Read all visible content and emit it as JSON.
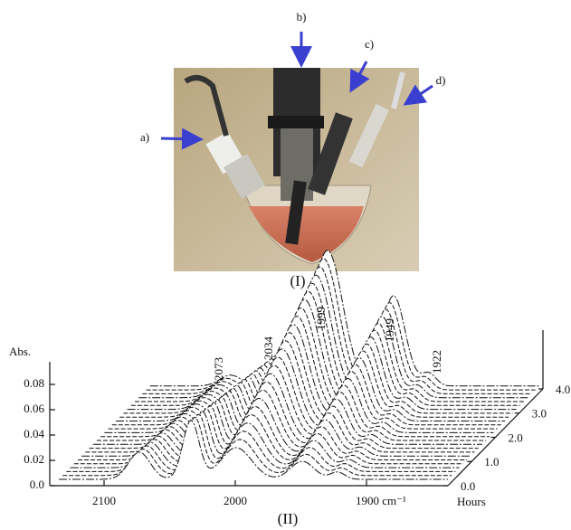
{
  "figure": {
    "photo": {
      "labels": [
        "a)",
        "b)",
        "c)",
        "d)"
      ],
      "caption": "(I)"
    },
    "spectrum": {
      "y_label": "Abs.",
      "y_ticks": [
        "0.0",
        "0.02",
        "0.04",
        "0.06",
        "0.08"
      ],
      "x_ticks": [
        "2100",
        "2000",
        "1900 cm⁻¹"
      ],
      "depth_label": "Hours",
      "depth_ticks": [
        "0.0",
        "1.0",
        "2.0",
        "3.0",
        "4.0"
      ],
      "peak_labels": [
        "2073",
        "2034",
        "1999",
        "1949",
        "1922"
      ],
      "caption": "(II)"
    }
  }
}
